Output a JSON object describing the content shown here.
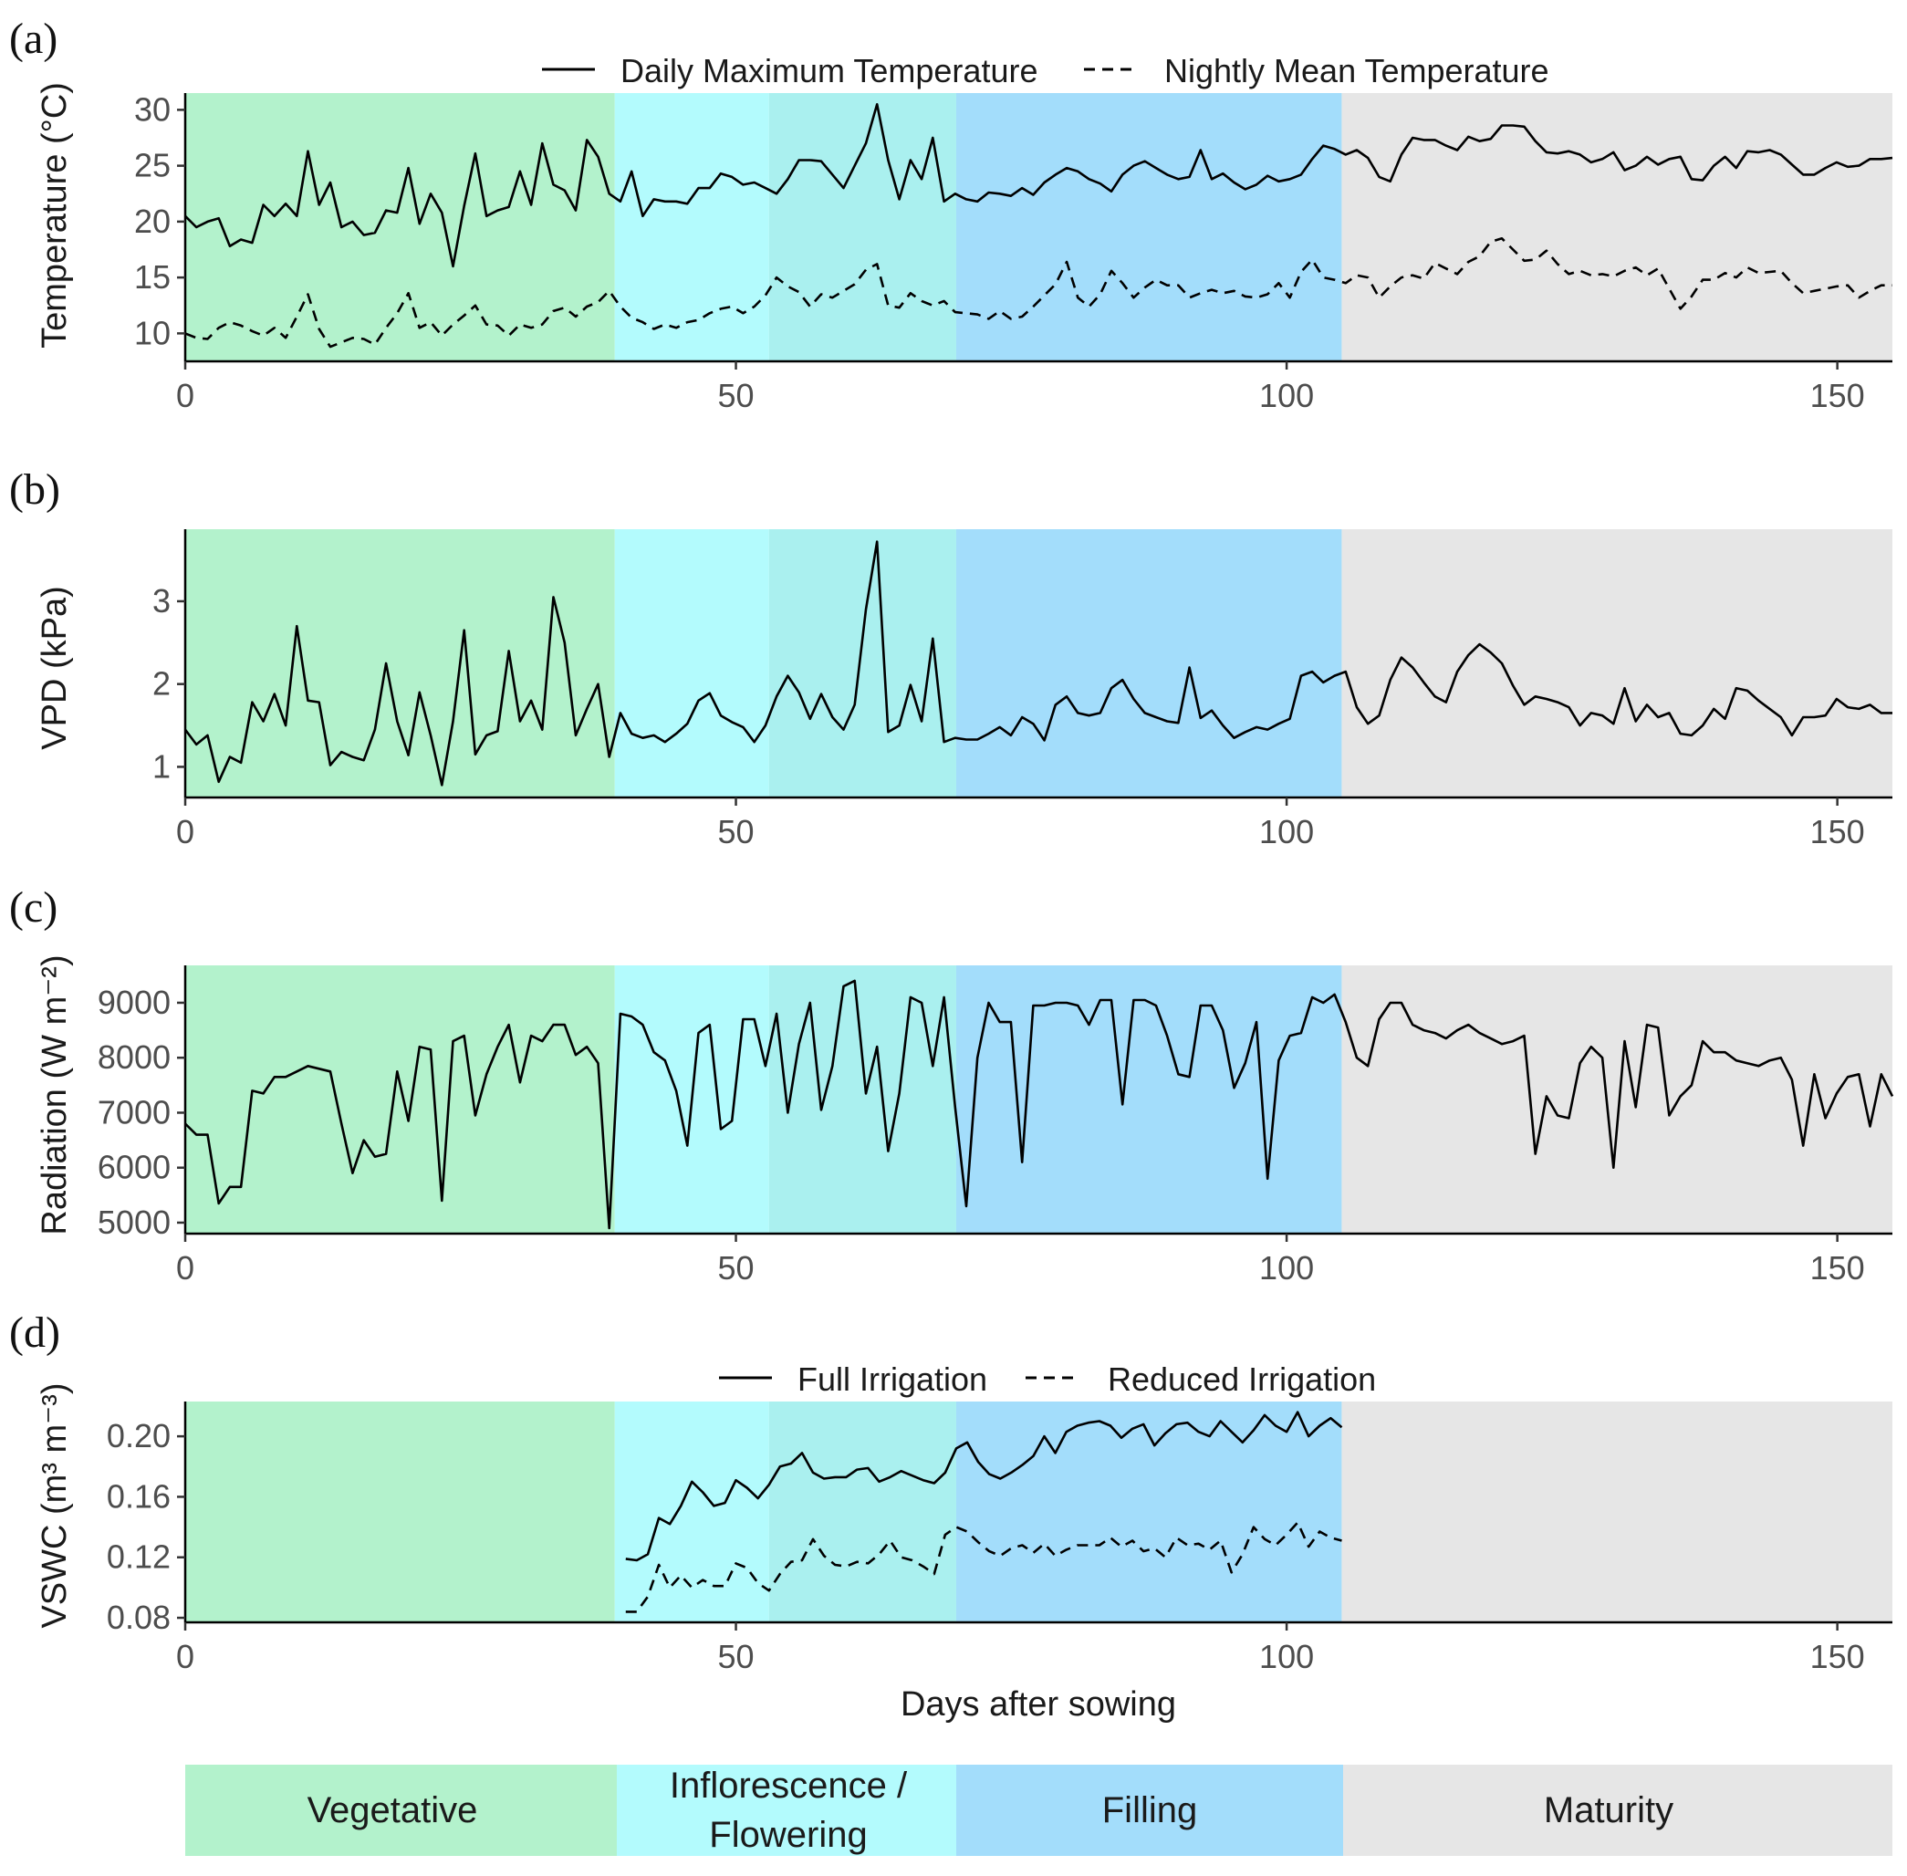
{
  "stages": [
    {
      "name": "Vegetative",
      "start": 0,
      "end": 39,
      "color": "#b3f2cc"
    },
    {
      "name": "Inflorescence",
      "start": 39,
      "end": 53,
      "color": "#b3fbfd"
    },
    {
      "name": "Flowering",
      "start": 53,
      "end": 70,
      "color": "#aaf0ef"
    },
    {
      "name": "Filling",
      "start": 70,
      "end": 105,
      "color": "#a3ddfb"
    },
    {
      "name": "Maturity",
      "start": 105,
      "end": 155,
      "color": "#e6e6e6"
    }
  ],
  "stage_labels": {
    "vegetative": "Vegetative",
    "inflorescence_line1": "Inflorescence /",
    "inflorescence_line2": "Flowering",
    "filling": "Filling",
    "maturity": "Maturity"
  },
  "x_axis": {
    "label": "Days after sowing",
    "range": [
      0,
      155
    ],
    "ticks": [
      0,
      50,
      100,
      150
    ]
  },
  "chart_data": [
    {
      "id": "a",
      "panel_label": "(a)",
      "type": "line",
      "ylabel": "Temperature (°C)",
      "ylim": [
        7.5,
        31.5
      ],
      "yticks": [
        10,
        15,
        20,
        25,
        30
      ],
      "legend": [
        "Daily Maximum Temperature",
        "Nightly Mean Temperature"
      ],
      "series": [
        {
          "name": "Daily Maximum Temperature",
          "style": "solid",
          "x_start": 0,
          "x_end": 155,
          "values": [
            20.5,
            19.5,
            20,
            20.3,
            17.8,
            18.4,
            18.1,
            21.5,
            20.5,
            21.6,
            20.5,
            26.3,
            21.5,
            23.5,
            19.5,
            20,
            18.8,
            19,
            21,
            20.8,
            24.8,
            19.8,
            22.5,
            20.8,
            16,
            21.4,
            26.1,
            20.5,
            21,
            21.3,
            24.5,
            21.5,
            27,
            23.3,
            22.8,
            21,
            27.3,
            25.8,
            22.5,
            21.8,
            24.5,
            20.5,
            22,
            21.8,
            21.8,
            21.6,
            23,
            23,
            24.3,
            24,
            23.3,
            23.5,
            23,
            22.5,
            23.8,
            25.5,
            25.5,
            25.4,
            24.2,
            23,
            25,
            27,
            30.5,
            25.5,
            22,
            25.5,
            23.8,
            27.5,
            21.8,
            22.5,
            22,
            21.8,
            22.6,
            22.5,
            22.3,
            23,
            22.4,
            23.5,
            24.2,
            24.8,
            24.5,
            23.8,
            23.4,
            22.7,
            24.2,
            25,
            25.4,
            24.8,
            24.2,
            23.8,
            24,
            26.4,
            23.8,
            24.3,
            23.5,
            22.9,
            23.3,
            24.1,
            23.6,
            23.8,
            24.2,
            25.6,
            26.8,
            26.5,
            26,
            26.4,
            25.7,
            24,
            23.6,
            26,
            27.5,
            27.3,
            27.3,
            26.8,
            26.4,
            27.6,
            27.2,
            27.4,
            28.6,
            28.6,
            28.5,
            27.2,
            26.2,
            26.1,
            26.3,
            26,
            25.3,
            25.6,
            26.2,
            24.6,
            25,
            25.8,
            25.1,
            25.6,
            25.8,
            23.8,
            23.7,
            25,
            25.8,
            24.8,
            26.3,
            26.2,
            26.4,
            26,
            25.1,
            24.2,
            24.2,
            24.8,
            25.3,
            24.9,
            25,
            25.6,
            25.6,
            25.7
          ]
        },
        {
          "name": "Nightly Mean Temperature",
          "style": "dashed",
          "x_start": 0,
          "x_end": 155,
          "values": [
            10,
            9.6,
            9.5,
            10.5,
            11,
            10.7,
            10.2,
            9.8,
            10.5,
            9.6,
            11.5,
            13.5,
            10.4,
            8.8,
            9.2,
            9.6,
            9.5,
            9,
            10.5,
            11.8,
            13.6,
            10.5,
            11,
            9.8,
            10.8,
            11.6,
            12.5,
            10.8,
            10.7,
            9.8,
            10.8,
            10.5,
            10.8,
            12,
            12.3,
            11.5,
            12.4,
            12.8,
            13.8,
            12.4,
            11.4,
            11,
            10.4,
            10.8,
            10.5,
            11,
            11.2,
            11.8,
            12.2,
            12.4,
            11.8,
            12.4,
            13.4,
            15,
            14.2,
            13.7,
            12.4,
            13.5,
            13.2,
            13.8,
            14.4,
            15.7,
            16.2,
            12.5,
            12.3,
            13.6,
            12.9,
            12.5,
            12.9,
            11.9,
            11.8,
            11.7,
            11.3,
            12,
            11.3,
            11.5,
            12.4,
            13.4,
            14.4,
            16.4,
            13.2,
            12.4,
            13.5,
            15.6,
            14.5,
            13.2,
            14.1,
            14.8,
            14.3,
            14.3,
            13.2,
            13.6,
            13.9,
            13.6,
            13.8,
            13.3,
            13.2,
            13.5,
            14.5,
            13.2,
            15.5,
            16.6,
            15,
            14.8,
            14.5,
            15.2,
            15,
            13.2,
            14.2,
            15,
            15.2,
            14.9,
            16.3,
            15.8,
            15.3,
            16.4,
            16.9,
            18.2,
            18.5,
            17.5,
            16.5,
            16.6,
            17.4,
            16.2,
            15.3,
            15.6,
            15.2,
            15.3,
            15.1,
            15.6,
            15.9,
            15.2,
            15.8,
            14,
            12.2,
            13.3,
            14.8,
            14.8,
            15.4,
            15,
            15.9,
            15.4,
            15.5,
            15.6,
            14.5,
            13.6,
            13.8,
            14,
            14.2,
            14.3,
            13.2,
            13.8,
            14.3,
            14.3
          ]
        }
      ]
    },
    {
      "id": "b",
      "panel_label": "(b)",
      "type": "line",
      "ylabel": "VPD (kPa)",
      "ylim": [
        0.63,
        3.87
      ],
      "yticks": [
        1,
        2,
        3
      ],
      "series": [
        {
          "name": "VPD",
          "style": "solid",
          "x_start": 0,
          "x_end": 155,
          "values": [
            1.45,
            1.27,
            1.38,
            0.82,
            1.12,
            1.05,
            1.78,
            1.55,
            1.88,
            1.5,
            2.7,
            1.8,
            1.78,
            1.02,
            1.18,
            1.12,
            1.08,
            1.45,
            2.25,
            1.55,
            1.14,
            1.9,
            1.38,
            0.78,
            1.55,
            2.65,
            1.15,
            1.38,
            1.43,
            2.4,
            1.55,
            1.8,
            1.45,
            3.05,
            2.5,
            1.38,
            1.7,
            2,
            1.12,
            1.65,
            1.4,
            1.35,
            1.38,
            1.3,
            1.4,
            1.52,
            1.8,
            1.89,
            1.62,
            1.54,
            1.48,
            1.3,
            1.5,
            1.85,
            2.1,
            1.9,
            1.58,
            1.88,
            1.6,
            1.45,
            1.75,
            2.9,
            3.72,
            1.42,
            1.5,
            1.99,
            1.55,
            2.55,
            1.3,
            1.35,
            1.33,
            1.33,
            1.4,
            1.48,
            1.38,
            1.6,
            1.52,
            1.32,
            1.75,
            1.85,
            1.65,
            1.62,
            1.65,
            1.95,
            2.05,
            1.82,
            1.65,
            1.6,
            1.55,
            1.53,
            2.2,
            1.59,
            1.68,
            1.5,
            1.35,
            1.42,
            1.48,
            1.45,
            1.52,
            1.58,
            2.1,
            2.15,
            2.02,
            2.1,
            2.15,
            1.72,
            1.52,
            1.62,
            2.05,
            2.32,
            2.2,
            2.02,
            1.85,
            1.78,
            2.15,
            2.35,
            2.48,
            2.38,
            2.25,
            1.98,
            1.75,
            1.85,
            1.82,
            1.78,
            1.72,
            1.5,
            1.65,
            1.62,
            1.52,
            1.95,
            1.55,
            1.75,
            1.6,
            1.65,
            1.4,
            1.38,
            1.5,
            1.7,
            1.58,
            1.95,
            1.92,
            1.8,
            1.7,
            1.6,
            1.38,
            1.6,
            1.6,
            1.62,
            1.82,
            1.72,
            1.7,
            1.75,
            1.65,
            1.65
          ]
        }
      ]
    },
    {
      "id": "c",
      "panel_label": "(c)",
      "type": "line",
      "ylabel": "Radiation (W m⁻²)",
      "ylim": [
        4800,
        9680
      ],
      "yticks": [
        5000,
        6000,
        7000,
        8000,
        9000
      ],
      "series": [
        {
          "name": "Radiation",
          "style": "solid",
          "x_start": 0,
          "x_end": 155,
          "values": [
            6800,
            6600,
            6600,
            5350,
            5650,
            5650,
            7400,
            7350,
            7650,
            7650,
            7750,
            7850,
            7800,
            7750,
            6800,
            5900,
            6500,
            6200,
            6250,
            7750,
            6850,
            8200,
            8150,
            5400,
            8300,
            8400,
            6950,
            7700,
            8200,
            8600,
            7550,
            8400,
            8300,
            8600,
            8600,
            8050,
            8200,
            7900,
            4900,
            8800,
            8750,
            8600,
            8100,
            7950,
            7400,
            6400,
            8450,
            8600,
            6700,
            6850,
            8700,
            8700,
            7850,
            8800,
            7000,
            8250,
            9000,
            7050,
            7850,
            9300,
            9400,
            7350,
            8200,
            6300,
            7350,
            9100,
            9000,
            7850,
            9100,
            7100,
            5300,
            8000,
            9000,
            8650,
            8650,
            6100,
            8950,
            8950,
            9000,
            9000,
            8950,
            8600,
            9050,
            9050,
            7150,
            9050,
            9050,
            8950,
            8400,
            7700,
            7650,
            8950,
            8950,
            8500,
            7450,
            7900,
            8650,
            5800,
            7950,
            8400,
            8450,
            9100,
            9000,
            9150,
            8650,
            8000,
            7850,
            8700,
            9000,
            9000,
            8600,
            8500,
            8450,
            8350,
            8500,
            8600,
            8450,
            8350,
            8250,
            8300,
            8400,
            6250,
            7300,
            6950,
            6900,
            7900,
            8200,
            8000,
            6000,
            8300,
            7100,
            8600,
            8550,
            6950,
            7300,
            7500,
            8300,
            8100,
            8100,
            7950,
            7900,
            7850,
            7950,
            8000,
            7600,
            6400,
            7700,
            6900,
            7350,
            7650,
            7700,
            6750,
            7700,
            7300
          ]
        }
      ]
    },
    {
      "id": "d",
      "panel_label": "(d)",
      "type": "line",
      "ylabel": "VSWC (m³ m⁻³)",
      "ylim": [
        0.077,
        0.223
      ],
      "yticks": [
        0.08,
        0.12,
        0.16,
        0.2
      ],
      "ytick_labels": [
        "0.08",
        "0.12",
        "0.16",
        "0.20"
      ],
      "legend": [
        "Full Irrigation",
        "Reduced Irrigation"
      ],
      "series": [
        {
          "name": "Full Irrigation",
          "style": "solid",
          "x_start": 40,
          "x_end": 105,
          "values": [
            0.119,
            0.118,
            0.122,
            0.146,
            0.142,
            0.154,
            0.17,
            0.163,
            0.154,
            0.156,
            0.171,
            0.166,
            0.159,
            0.168,
            0.18,
            0.182,
            0.189,
            0.176,
            0.172,
            0.173,
            0.173,
            0.178,
            0.179,
            0.17,
            0.173,
            0.177,
            0.174,
            0.171,
            0.169,
            0.176,
            0.192,
            0.196,
            0.183,
            0.175,
            0.172,
            0.176,
            0.181,
            0.187,
            0.2,
            0.189,
            0.203,
            0.207,
            0.209,
            0.21,
            0.207,
            0.199,
            0.205,
            0.208,
            0.194,
            0.202,
            0.208,
            0.209,
            0.203,
            0.2,
            0.21,
            0.203,
            0.196,
            0.204,
            0.214,
            0.207,
            0.203,
            0.216,
            0.2,
            0.207,
            0.212,
            0.206
          ]
        },
        {
          "name": "Reduced Irrigation",
          "style": "dashed",
          "x_start": 40,
          "x_end": 105,
          "values": [
            0.084,
            0.084,
            0.094,
            0.115,
            0.1,
            0.108,
            0.1,
            0.105,
            0.101,
            0.101,
            0.116,
            0.113,
            0.103,
            0.098,
            0.109,
            0.117,
            0.118,
            0.132,
            0.121,
            0.115,
            0.114,
            0.117,
            0.116,
            0.122,
            0.131,
            0.12,
            0.118,
            0.114,
            0.109,
            0.135,
            0.14,
            0.137,
            0.13,
            0.124,
            0.121,
            0.126,
            0.128,
            0.123,
            0.129,
            0.121,
            0.125,
            0.128,
            0.128,
            0.128,
            0.133,
            0.127,
            0.131,
            0.124,
            0.126,
            0.12,
            0.133,
            0.128,
            0.129,
            0.125,
            0.131,
            0.11,
            0.122,
            0.14,
            0.132,
            0.128,
            0.135,
            0.143,
            0.127,
            0.137,
            0.133,
            0.131
          ]
        }
      ]
    }
  ]
}
